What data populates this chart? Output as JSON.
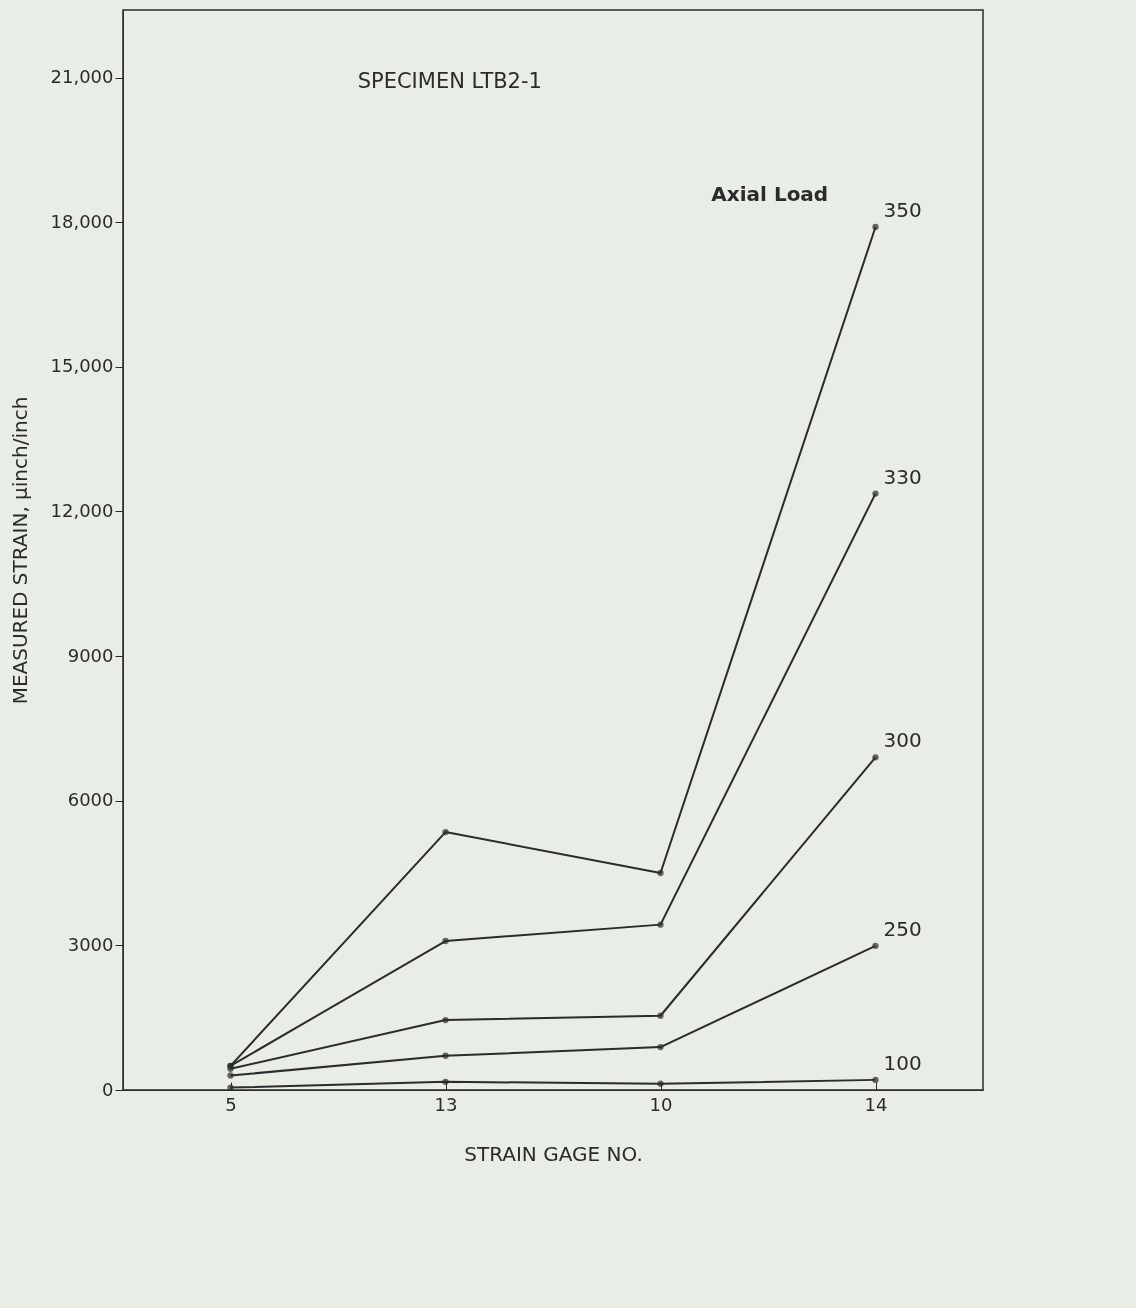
{
  "chart_data": {
    "type": "line",
    "title": "SPECIMEN LTB2-1",
    "xlabel": "STRAIN GAGE NO.",
    "ylabel": "MEASURED STRAIN, μinch/inch",
    "categories": [
      "5",
      "13",
      "10",
      "14"
    ],
    "series": [
      {
        "name": "350",
        "color": "#2b2b2b",
        "values": [
          500,
          5350,
          4500,
          17900
        ]
      },
      {
        "name": "330",
        "color": "#2b2b2b",
        "values": [
          500,
          3090,
          3430,
          12370
        ]
      },
      {
        "name": "300",
        "color": "#2b2b2b",
        "values": [
          440,
          1450,
          1540,
          6900
        ]
      },
      {
        "name": "250",
        "color": "#2b2b2b",
        "values": [
          300,
          710,
          890,
          2990
        ]
      },
      {
        "name": "100",
        "color": "#2b2b2b",
        "values": [
          50,
          170,
          130,
          210
        ]
      }
    ],
    "ylim": [
      0,
      22400
    ],
    "yticks": [
      0,
      3000,
      6000,
      9000,
      {
        "value": 12000,
        "label": "12,000"
      },
      {
        "value": 15000,
        "label": "15,000"
      },
      {
        "value": 18000,
        "label": "18,000"
      },
      {
        "value": 21000,
        "label": "21,000"
      }
    ],
    "annotations": [
      "Axial Load"
    ],
    "grid": false,
    "marker": "circle",
    "line_style": "solid"
  }
}
